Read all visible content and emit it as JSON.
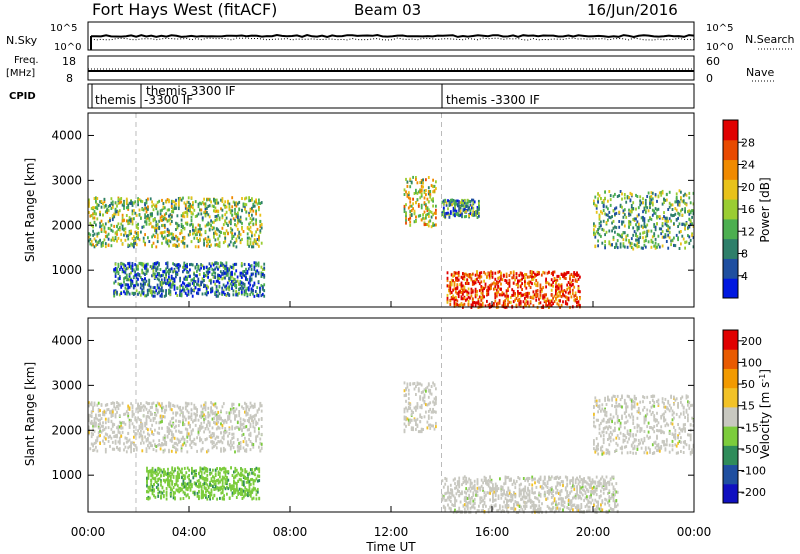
{
  "header": {
    "title": "Fort Hays West (fitACF)",
    "beam": "Beam 03",
    "date": "16/Jun/2016"
  },
  "sky_panel": {
    "left_label": "N.Sky",
    "right_label": "N.Search",
    "left_ticks": [
      "10^5",
      "10^0"
    ],
    "right_ticks": [
      "10^5",
      "10^0"
    ]
  },
  "freq_panel": {
    "left_label_1": "Freq.",
    "left_label_2": "[MHz]",
    "right_label": "Nave",
    "left_ticks": [
      "18",
      "8"
    ],
    "right_ticks": [
      "60",
      "0"
    ]
  },
  "cpid_panel": {
    "label": "CPID",
    "entries": [
      {
        "text": "themis"
      },
      {
        "text": "themis 3300 IF"
      },
      {
        "text": "-3300 IF"
      },
      {
        "text": "themis -3300 IF"
      }
    ]
  },
  "colors": {
    "power_scale": [
      "#0018e0",
      "#1f4fa0",
      "#2e7f6a",
      "#4caf50",
      "#9acd32",
      "#e8c21a",
      "#f08a00",
      "#e84a00",
      "#e00000"
    ],
    "velocity_scale": [
      "#1010c0",
      "#1f4fa0",
      "#2f8c5a",
      "#7ccc3c",
      "#c8c8c0",
      "#f2c227",
      "#f29a00",
      "#e85a00",
      "#e00000"
    ]
  },
  "chart_data": [
    {
      "type": "heatmap",
      "title": "",
      "ylabel": "Slant Range [km]",
      "xlabel": "",
      "ylim": [
        180,
        4500
      ],
      "y_ticks": [
        1000,
        2000,
        3000,
        4000
      ],
      "colorbar": {
        "label": "Power [dB]",
        "ticks": [
          "4",
          "8",
          "12",
          "16",
          "20",
          "24",
          "28"
        ],
        "range": [
          0,
          30
        ]
      },
      "regions": [
        {
          "t0": 0.0,
          "t1": 6.9,
          "r0": 1550,
          "r1": 2650,
          "value": 14,
          "desc": "arc"
        },
        {
          "t0": 1.0,
          "t1": 7.0,
          "r0": 450,
          "r1": 1200,
          "value": 7
        },
        {
          "t0": 12.5,
          "t1": 13.8,
          "r0": 2000,
          "r1": 3100,
          "value": 17
        },
        {
          "t0": 14.2,
          "t1": 19.5,
          "r0": 200,
          "r1": 1000,
          "value": 26
        },
        {
          "t0": 14.0,
          "t1": 15.5,
          "r0": 2200,
          "r1": 2600,
          "value": 10
        },
        {
          "t0": 20.0,
          "t1": 24.0,
          "r0": 1500,
          "r1": 2800,
          "value": 12
        }
      ]
    },
    {
      "type": "heatmap",
      "title": "",
      "ylabel": "Slant Range [km]",
      "xlabel": "Time UT",
      "ylim": [
        180,
        4500
      ],
      "y_ticks": [
        1000,
        2000,
        3000,
        4000
      ],
      "x_ticks": [
        "00:00",
        "04:00",
        "08:00",
        "12:00",
        "16:00",
        "20:00",
        "00:00"
      ],
      "xlim": [
        0,
        24
      ],
      "colorbar": {
        "label": "Velocity [m s^-1]",
        "ticks": [
          "200",
          "100",
          "50",
          "15",
          "-15",
          "-50",
          "-100",
          "-200"
        ],
        "range": [
          -250,
          250
        ]
      },
      "regions": [
        {
          "t0": 0.0,
          "t1": 6.9,
          "r0": 1550,
          "r1": 2650,
          "value": 0
        },
        {
          "t0": 2.3,
          "t1": 6.8,
          "r0": 500,
          "r1": 1200,
          "value": -60
        },
        {
          "t0": 12.5,
          "t1": 13.8,
          "r0": 2000,
          "r1": 3100,
          "value": 0
        },
        {
          "t0": 14.0,
          "t1": 21.0,
          "r0": 200,
          "r1": 1000,
          "value": 0
        },
        {
          "t0": 20.0,
          "t1": 24.0,
          "r0": 1500,
          "r1": 2800,
          "value": 0
        }
      ]
    }
  ]
}
